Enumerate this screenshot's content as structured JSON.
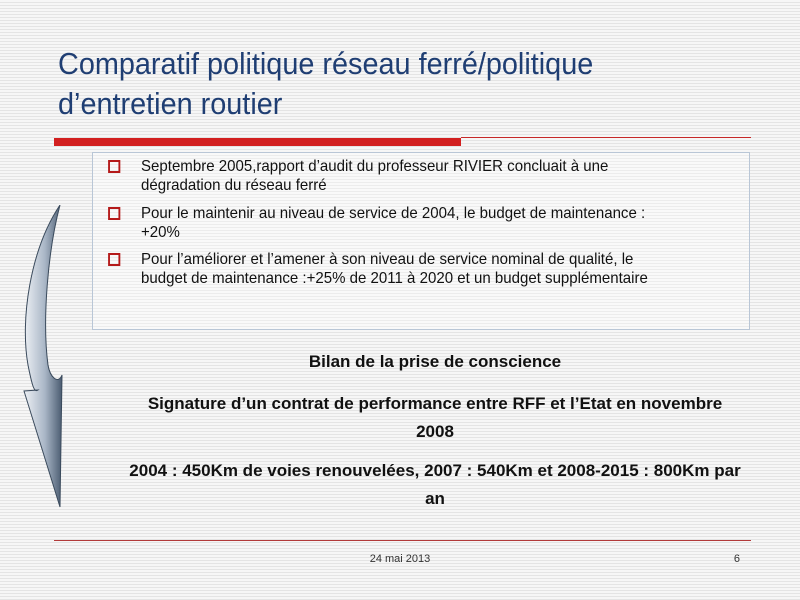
{
  "slide": {
    "title_line1": "Comparatif politique réseau ferré/politique",
    "title_line2": "d’entretien routier",
    "bullets": [
      {
        "line1": "Septembre 2005,rapport d’audit du professeur RIVIER concluait à une",
        "line2": "dégradation du réseau ferré"
      },
      {
        "line1": "Pour le maintenir au niveau de service de 2004, le budget de maintenance :",
        "line2": "+20%"
      },
      {
        "line1": "Pour l’améliorer et l’amener à son niveau de service nominal de qualité, le",
        "line2": "budget de maintenance :+25% de 2011 à 2020  et un budget supplémentaire"
      }
    ],
    "summary": {
      "heading": "Bilan de la prise de conscience",
      "contract_line1": "Signature d’un contrat de performance entre RFF et l’Etat en novembre",
      "contract_line2": "2008",
      "stats_line1": "2004 : 450Km de voies renouvelées, 2007 : 540Km et 2008-2015 : 800Km par",
      "stats_line2": "an"
    },
    "footer": {
      "date": "24 mai 2013",
      "page_number": "6"
    },
    "colors": {
      "title": "#1f3e73",
      "accent_red": "#d21f1f",
      "bullet_box": "#b51a1a"
    },
    "icons": {
      "bullet": "hollow-square-icon",
      "decoration": "curved-arrow-icon"
    }
  }
}
